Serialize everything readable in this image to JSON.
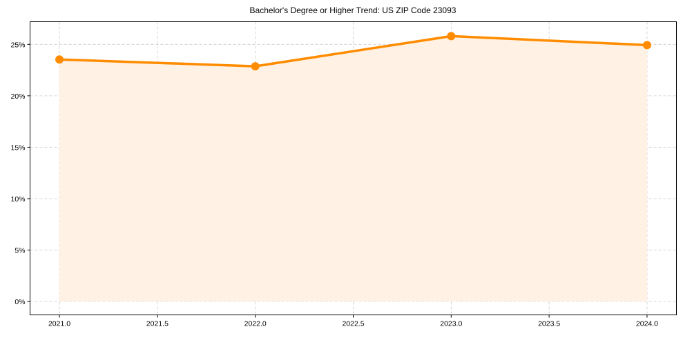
{
  "chart_data": {
    "type": "area",
    "title": "Bachelor's Degree or Higher Trend: US ZIP Code 23093",
    "xlabel": "",
    "ylabel": "",
    "x": [
      2021,
      2022,
      2023,
      2024
    ],
    "series": [
      {
        "name": "Bachelor's Degree or Higher",
        "values": [
          23.53,
          22.87,
          25.8,
          24.93
        ],
        "color": "#FF8C00",
        "fill_color": "#FFF1E3"
      }
    ],
    "xticks": [
      "2021.0",
      "2021.5",
      "2022.0",
      "2022.5",
      "2023.0",
      "2023.5",
      "2024.0"
    ],
    "yticks": [
      "0%",
      "5%",
      "10%",
      "15%",
      "20%",
      "25%"
    ],
    "xlim": [
      2020.85,
      2024.15
    ],
    "ylim": [
      -1.3,
      27.2
    ],
    "grid": true,
    "legend": null
  }
}
